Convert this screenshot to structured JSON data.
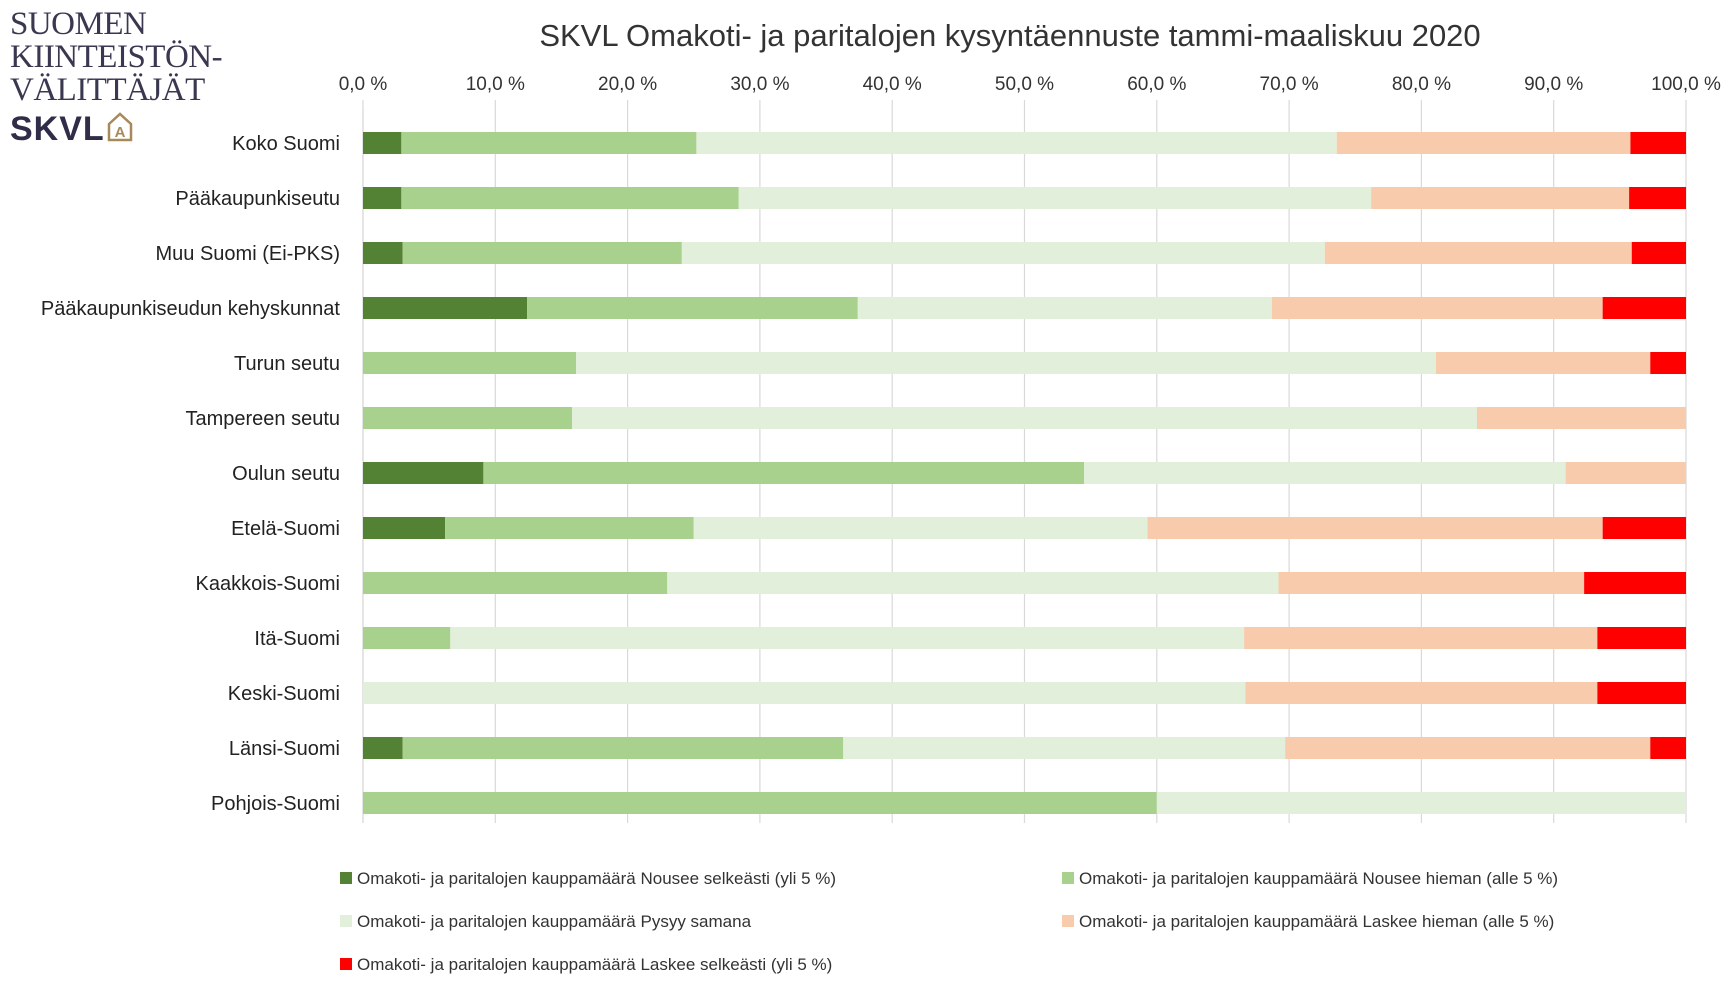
{
  "logo": {
    "line1": "SUOMEN",
    "line2": "KIINTEISTÖN-",
    "line3": "VÄLITTÄJÄT",
    "brand": "SKVL",
    "house_letter": "A"
  },
  "chart_data": {
    "type": "bar",
    "orientation": "horizontal",
    "stacked": "percent",
    "title": "SKVL Omakoti- ja paritalojen kysyntäennuste tammi-maaliskuu 2020",
    "xlabel": "",
    "ylabel": "",
    "xlim": [
      0,
      100
    ],
    "tick_labels": [
      "0,0 %",
      "10,0 %",
      "20,0 %",
      "30,0 %",
      "40,0 %",
      "50,0 %",
      "60,0 %",
      "70,0 %",
      "80,0 %",
      "90,0 %",
      "100,0 %"
    ],
    "tick_values": [
      0,
      10,
      20,
      30,
      40,
      50,
      60,
      70,
      80,
      90,
      100
    ],
    "grid": "vertical",
    "legend_position": "bottom",
    "categories": [
      "Koko Suomi",
      "Pääkaupunkiseutu",
      "Muu Suomi (Ei-PKS)",
      "Pääkaupunkiseudun kehyskunnat",
      "Turun seutu",
      "Tampereen seutu",
      "Oulun seutu",
      "Etelä-Suomi",
      "Kaakkois-Suomi",
      "Itä-Suomi",
      "Keski-Suomi",
      "Länsi-Suomi",
      "Pohjois-Suomi"
    ],
    "series": [
      {
        "name": "Omakoti- ja paritalojen kauppamäärä Nousee selkeästi (yli 5 %)",
        "color": "#548235",
        "values": [
          2.9,
          2.9,
          3.0,
          12.4,
          0,
          0,
          9.1,
          6.2,
          0,
          0,
          0,
          3.0,
          0
        ]
      },
      {
        "name": "Omakoti- ja paritalojen kauppamäärä Nousee hieman (alle 5 %)",
        "color": "#a9d18e",
        "values": [
          22.3,
          25.5,
          21.1,
          25.0,
          16.1,
          15.8,
          45.4,
          18.8,
          23.0,
          6.6,
          0,
          33.3,
          60.0
        ]
      },
      {
        "name": "Omakoti- ja paritalojen kauppamäärä Pysyy samana",
        "color": "#e2efda",
        "values": [
          48.4,
          47.8,
          48.6,
          31.3,
          65.0,
          68.4,
          36.4,
          34.3,
          46.2,
          60.0,
          66.7,
          33.4,
          40.0
        ]
      },
      {
        "name": "Omakoti- ja paritalojen kauppamäärä Laskee hieman (alle 5 %)",
        "color": "#f8cbad",
        "values": [
          22.2,
          19.5,
          23.2,
          25.0,
          16.2,
          15.8,
          9.1,
          34.4,
          23.1,
          26.7,
          26.6,
          27.6,
          0
        ]
      },
      {
        "name": "Omakoti- ja paritalojen kauppamäärä Laskee selkeästi (yli 5 %)",
        "color": "#ff0000",
        "values": [
          4.2,
          4.3,
          4.1,
          6.3,
          2.7,
          0,
          0,
          6.3,
          7.7,
          6.7,
          6.7,
          2.7,
          0
        ]
      }
    ]
  }
}
